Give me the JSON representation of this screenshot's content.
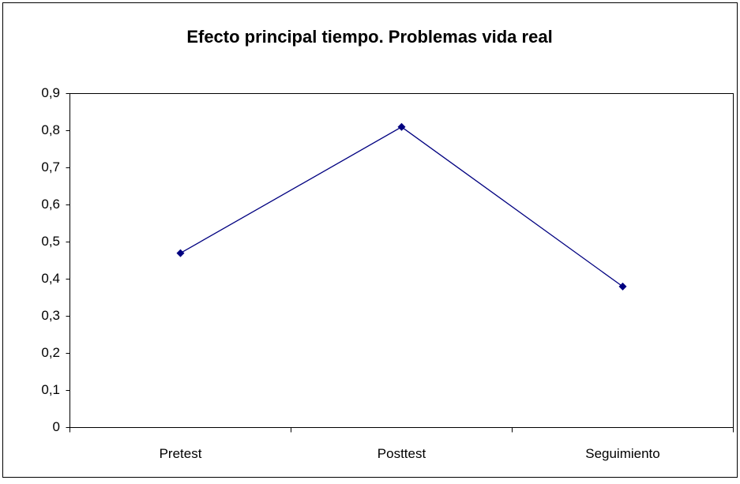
{
  "chart_data": {
    "type": "line",
    "title": "Efecto principal tiempo. Problemas vida real",
    "categories": [
      "Pretest",
      "Posttest",
      "Seguimiento"
    ],
    "series": [
      {
        "name": "Problemas vida real",
        "color": "#000080",
        "values": [
          0.47,
          0.81,
          0.38
        ]
      }
    ],
    "ylim": [
      0,
      0.9
    ],
    "yticks": [
      0,
      {
        "value": 0.1,
        "label": "0,1"
      },
      {
        "value": 0.2,
        "label": "0,2"
      },
      {
        "value": 0.3,
        "label": "0,3"
      },
      {
        "value": 0.4,
        "label": "0,4"
      },
      {
        "value": 0.5,
        "label": "0,5"
      },
      {
        "value": 0.6,
        "label": "0,6"
      },
      {
        "value": 0.7,
        "label": "0,7"
      },
      {
        "value": 0.8,
        "label": "0,8"
      },
      {
        "value": 0.9,
        "label": "0,9"
      }
    ],
    "grid": false
  }
}
